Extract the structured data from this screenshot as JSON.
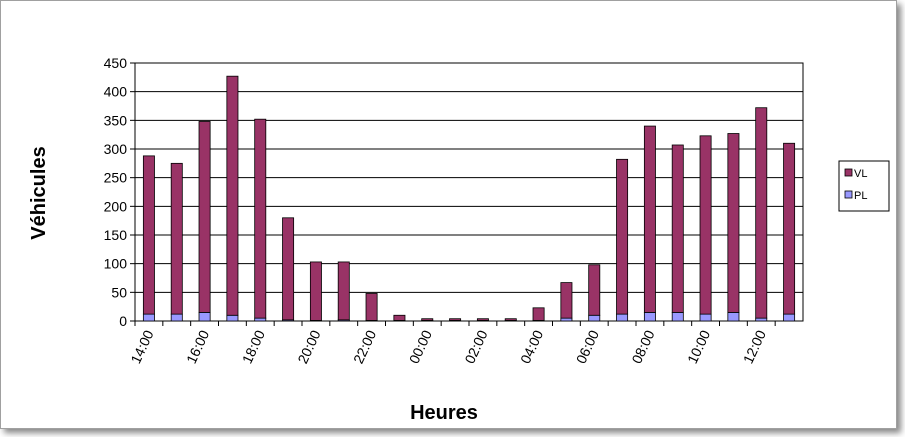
{
  "chart_data": {
    "type": "bar",
    "stacked": true,
    "x_label": "Heures",
    "y_label": "Véhicules",
    "categories": [
      "14:00",
      null,
      "16:00",
      null,
      "18:00",
      null,
      "20:00",
      null,
      "22:00",
      null,
      "00:00",
      null,
      "02:00",
      null,
      "04:00",
      null,
      "06:00",
      null,
      "08:00",
      null,
      "10:00",
      null,
      "12:00",
      null
    ],
    "series": [
      {
        "name": "VL",
        "color": "#993366",
        "values": [
          276,
          263,
          333,
          417,
          347,
          178,
          102,
          101,
          47,
          9,
          3,
          3,
          3,
          3,
          22,
          62,
          88,
          270,
          325,
          292,
          311,
          312,
          367,
          298
        ]
      },
      {
        "name": "PL",
        "color": "#9999ff",
        "values": [
          12,
          12,
          15,
          10,
          5,
          2,
          1,
          2,
          1,
          1,
          1,
          1,
          1,
          1,
          1,
          5,
          10,
          12,
          15,
          15,
          12,
          15,
          5,
          12
        ]
      }
    ],
    "ylim": [
      0,
      450
    ],
    "yticks": [
      0,
      50,
      100,
      150,
      200,
      250,
      300,
      350,
      400,
      450
    ],
    "grid": true,
    "legend": "right"
  }
}
